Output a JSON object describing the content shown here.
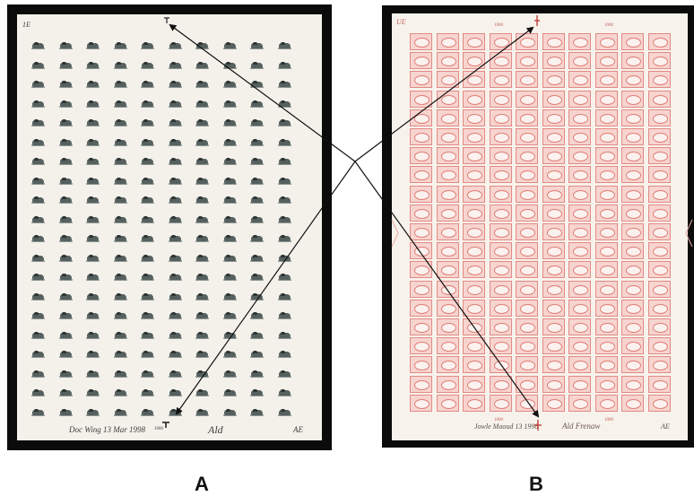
{
  "panels": [
    {
      "label": "A",
      "grid_columns": 10,
      "grid_rows": 20,
      "stamp_color": "#56605f",
      "paper_color": "#f3f1ea",
      "corner_mark": "1E",
      "plate_number": "1000",
      "inscription": "Doc Wing 13 Mar 1998",
      "signature": "Ald",
      "initials": "AE"
    },
    {
      "label": "B",
      "grid_columns": 10,
      "grid_rows": 20,
      "stamp_color": "#e28a84",
      "paper_color": "#f8f2ec",
      "corner_mark": "UE",
      "plate_number_left": "1000",
      "plate_number_right": "1000",
      "plate_number_bottom_left": "1000",
      "plate_number_bottom_right": "1000",
      "inscription": "Jowle Maoud 13 1998",
      "signature": "Ald Frenaw",
      "initials": "AE"
    }
  ],
  "arrow_color": "#111111"
}
